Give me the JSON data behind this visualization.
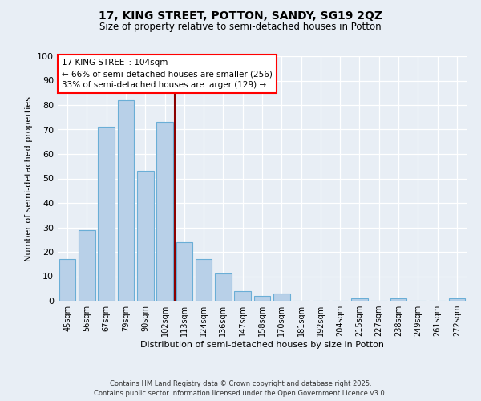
{
  "title1": "17, KING STREET, POTTON, SANDY, SG19 2QZ",
  "title2": "Size of property relative to semi-detached houses in Potton",
  "xlabel": "Distribution of semi-detached houses by size in Potton",
  "ylabel": "Number of semi-detached properties",
  "bar_labels": [
    "45sqm",
    "56sqm",
    "67sqm",
    "79sqm",
    "90sqm",
    "102sqm",
    "113sqm",
    "124sqm",
    "136sqm",
    "147sqm",
    "158sqm",
    "170sqm",
    "181sqm",
    "192sqm",
    "204sqm",
    "215sqm",
    "227sqm",
    "238sqm",
    "249sqm",
    "261sqm",
    "272sqm"
  ],
  "bar_values": [
    17,
    29,
    71,
    82,
    53,
    73,
    24,
    17,
    11,
    4,
    2,
    3,
    0,
    0,
    0,
    1,
    0,
    1,
    0,
    0,
    1
  ],
  "bar_color": "#b8d0e8",
  "bar_edge_color": "#6aaed6",
  "vline_bin_index": 5,
  "annotation_title": "17 KING STREET: 104sqm",
  "annotation_line1": "← 66% of semi-detached houses are smaller (256)",
  "annotation_line2": "33% of semi-detached houses are larger (129) →",
  "ylim": [
    0,
    100
  ],
  "yticks": [
    0,
    10,
    20,
    30,
    40,
    50,
    60,
    70,
    80,
    90,
    100
  ],
  "footer1": "Contains HM Land Registry data © Crown copyright and database right 2025.",
  "footer2": "Contains public sector information licensed under the Open Government Licence v3.0.",
  "bg_color": "#e8eef5",
  "plot_bg_color": "#e8eef5"
}
